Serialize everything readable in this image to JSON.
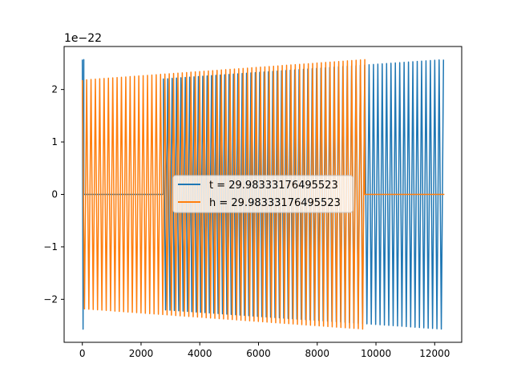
{
  "chart_data": {
    "type": "line",
    "title": "",
    "xlabel": "",
    "ylabel": "",
    "offset_text": "1e−22",
    "xlim": [
      -620,
      12920
    ],
    "ylim": [
      -2.82,
      2.82
    ],
    "xticks": [
      0,
      2000,
      4000,
      6000,
      8000,
      10000,
      12000
    ],
    "xtick_labels": [
      "0",
      "2000",
      "4000",
      "6000",
      "8000",
      "10000",
      "12000"
    ],
    "yticks": [
      -2,
      -1,
      0,
      1,
      2
    ],
    "ytick_labels": [
      "−2",
      "−1",
      "0",
      "1",
      "2"
    ],
    "grid": false,
    "legend_position": "center",
    "series": [
      {
        "name": "t = 29.98333176495523",
        "color": "#1f77b4",
        "segments": [
          {
            "type": "oscillation",
            "x_start": 0,
            "x_end": 50,
            "cycles": 0.5,
            "amp_start": 2.57,
            "amp_end": 2.57
          },
          {
            "type": "flat",
            "x_start": 50,
            "x_end": 2760,
            "value": 0
          },
          {
            "type": "oscillation",
            "x_start": 2760,
            "x_end": 12300,
            "cycles": 64,
            "amp_start": 2.2,
            "amp_end": 2.57
          }
        ]
      },
      {
        "name": "h = 29.98333176495523",
        "color": "#ff7f0e",
        "segments": [
          {
            "type": "oscillation",
            "x_start": 0,
            "x_end": 9620,
            "cycles": 65,
            "amp_start": 2.18,
            "amp_end": 2.57
          },
          {
            "type": "flat",
            "x_start": 9620,
            "x_end": 12330,
            "value": 0
          }
        ]
      }
    ]
  }
}
